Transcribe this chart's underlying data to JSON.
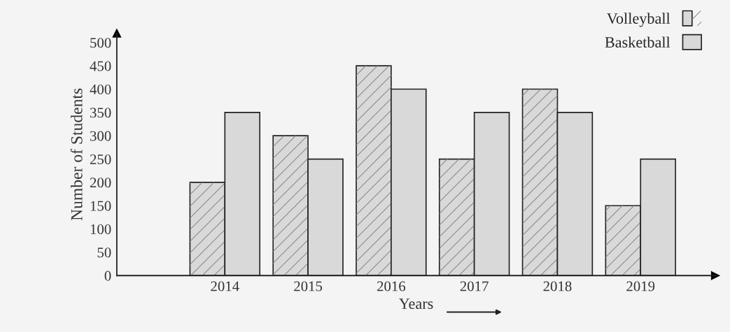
{
  "chart_data": {
    "type": "bar",
    "xlabel": "Years",
    "ylabel": "Number of Students",
    "categories": [
      "2014",
      "2015",
      "2016",
      "2017",
      "2018",
      "2019"
    ],
    "series": [
      {
        "name": "Volleyball",
        "color": "#d9d9d9",
        "values": [
          200,
          300,
          450,
          250,
          400,
          150
        ]
      },
      {
        "name": "Basketball",
        "color": "#d9d9d9",
        "values": [
          350,
          250,
          400,
          350,
          350,
          250
        ]
      }
    ],
    "ylim": [
      0,
      520
    ],
    "yticks": [
      0,
      50,
      100,
      150,
      200,
      250,
      300,
      350,
      400,
      450,
      500
    ],
    "grid": false,
    "legend": "top right"
  }
}
